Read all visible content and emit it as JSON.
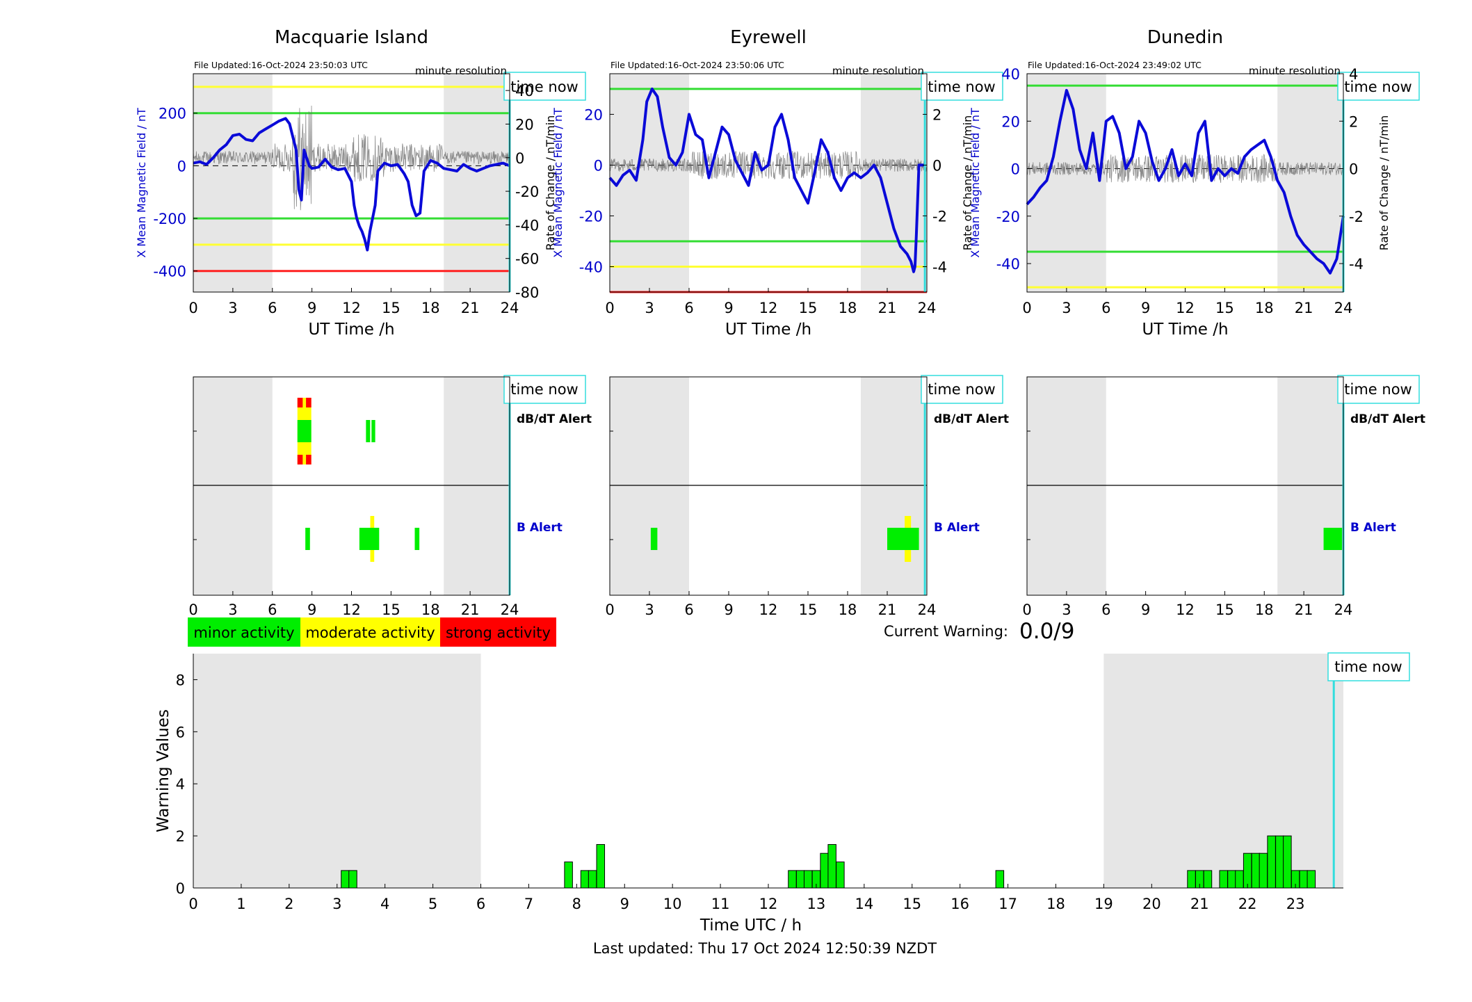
{
  "page": {
    "current_warning_label": "Current Warning:",
    "current_warning_value": "0.0/9",
    "last_updated": "Last updated: Thu 17 Oct 2024 12:50:39 NZDT",
    "time_now_label": "time now"
  },
  "stations": [
    {
      "name": "Macquarie Island",
      "file_updated": "File Updated:16-Oct-2024 23:50:03 UTC",
      "resolution": "minute resolution",
      "xlabel": "UT Time /h",
      "ylabel_left": "X Mean Magnetic Field / nT",
      "ylabel_right": "Rate of Change / nT/min",
      "xticks": [
        0,
        3,
        6,
        9,
        12,
        15,
        18,
        21,
        24
      ],
      "yticks_left": [
        -400,
        -200,
        0,
        200
      ],
      "yticks_right": [
        -80,
        -60,
        -40,
        -20,
        0,
        20,
        40
      ],
      "thresholds": [
        {
          "value": 300,
          "color": "#ffff33"
        },
        {
          "value": 200,
          "color": "#33dd33"
        },
        {
          "value": -200,
          "color": "#33dd33"
        },
        {
          "value": -300,
          "color": "#ffff33"
        },
        {
          "value": -400,
          "color": "#ff2020"
        }
      ],
      "alerts": {
        "dbdt_label": "dB/dT Alert",
        "b_label": "B Alert",
        "dbdt": [
          {
            "start": 7.9,
            "end": 8.95,
            "level": "strong"
          },
          {
            "start": 13.1,
            "end": 13.8,
            "level": "minor"
          }
        ],
        "b": [
          {
            "start": 8.5,
            "end": 8.85,
            "level": "minor"
          },
          {
            "start": 12.6,
            "end": 14.1,
            "level": "moderate"
          },
          {
            "start": 16.8,
            "end": 17.15,
            "level": "minor"
          }
        ]
      }
    },
    {
      "name": "Eyrewell",
      "file_updated": "File Updated:16-Oct-2024 23:50:06 UTC",
      "resolution": "minute resolution",
      "xlabel": "UT Time /h",
      "ylabel_left": "X Mean Magnetic Field / nT",
      "ylabel_right": "Rate of Change / nT/min",
      "xticks": [
        0,
        3,
        6,
        9,
        12,
        15,
        18,
        21,
        24
      ],
      "yticks_left": [
        -40,
        -20,
        0,
        20
      ],
      "yticks_right": [
        -4,
        -2,
        0,
        2
      ],
      "thresholds": [
        {
          "value": 30,
          "color": "#33dd33"
        },
        {
          "value": -30,
          "color": "#33dd33"
        },
        {
          "value": -40,
          "color": "#ffff33"
        },
        {
          "value": -50,
          "color": "#ff2020"
        }
      ],
      "alerts": {
        "dbdt_label": "dB/dT Alert",
        "b_label": "B Alert",
        "dbdt": [],
        "b": [
          {
            "start": 3.1,
            "end": 3.6,
            "level": "minor"
          },
          {
            "start": 21.0,
            "end": 23.4,
            "level": "moderate"
          }
        ]
      }
    },
    {
      "name": "Dunedin",
      "file_updated": "File Updated:16-Oct-2024 23:49:02 UTC",
      "resolution": "minute resolution",
      "xlabel": "UT Time /h",
      "ylabel_left": "X Mean Magnetic Field / nT",
      "ylabel_right": "Rate of Change / nT/min",
      "xticks": [
        0,
        3,
        6,
        9,
        12,
        15,
        18,
        21,
        24
      ],
      "yticks_left": [
        -40,
        -20,
        0,
        20,
        40
      ],
      "yticks_right": [
        -4,
        -2,
        0,
        2,
        4
      ],
      "thresholds": [
        {
          "value": 35,
          "color": "#33dd33"
        },
        {
          "value": -35,
          "color": "#33dd33"
        },
        {
          "value": -50,
          "color": "#ffff33"
        }
      ],
      "alerts": {
        "dbdt_label": "dB/dT Alert",
        "b_label": "B Alert",
        "dbdt": [],
        "b": [
          {
            "start": 22.5,
            "end": 23.9,
            "level": "minor"
          }
        ]
      }
    }
  ],
  "legend": [
    {
      "label": "minor activity",
      "color": "#00ee00"
    },
    {
      "label": "moderate activity",
      "color": "#ffff00"
    },
    {
      "label": "strong activity",
      "color": "#ff0000"
    }
  ],
  "colors": {
    "field_line": "#0a0ad8",
    "rate_line": "#666666",
    "night_shading": "#e6e6e6",
    "time_now": "#33dddd",
    "left_axis_text": "#0000cc"
  },
  "chart_data": [
    {
      "type": "line",
      "title": "Macquarie Island",
      "xlabel": "UT Time /h",
      "ylabel": "X Mean Magnetic Field / nT",
      "y2label": "Rate of Change / nT/min",
      "xlim": [
        0,
        24
      ],
      "ylim": [
        -480,
        350
      ],
      "y2lim": [
        -80,
        50
      ],
      "shading": [
        [
          0,
          6
        ],
        [
          19,
          24
        ]
      ],
      "time_now": 24,
      "series": [
        {
          "x": [
            0,
            0.5,
            1,
            1.5,
            2,
            2.5,
            3,
            3.5,
            4,
            4.5,
            5,
            5.5,
            6,
            6.5,
            7,
            7.3,
            7.6,
            7.8,
            8,
            8.2,
            8.4,
            8.6,
            8.8,
            9,
            9.5,
            10,
            10.5,
            11,
            11.5,
            12,
            12.2,
            12.4,
            12.6,
            12.8,
            13,
            13.2,
            13.4,
            13.6,
            13.8,
            14,
            14.5,
            15,
            15.5,
            16,
            16.3,
            16.6,
            16.9,
            17.2,
            17.5,
            18,
            18.5,
            19,
            19.5,
            20,
            20.5,
            21,
            21.5,
            22,
            22.5,
            23,
            23.5,
            24
          ],
          "y": [
            10,
            15,
            5,
            30,
            60,
            80,
            115,
            120,
            100,
            95,
            125,
            140,
            155,
            170,
            180,
            160,
            100,
            60,
            -90,
            -130,
            60,
            30,
            0,
            -10,
            -5,
            25,
            -5,
            -15,
            -10,
            -60,
            -150,
            -200,
            -230,
            -250,
            -280,
            -320,
            -250,
            -200,
            -150,
            -20,
            10,
            0,
            5,
            -30,
            -60,
            -150,
            -190,
            -180,
            -20,
            20,
            10,
            -10,
            -15,
            -20,
            5,
            -10,
            -20,
            -10,
            0,
            5,
            10,
            0
          ]
        }
      ],
      "thresholds": [
        300,
        200,
        -200,
        -300,
        -400
      ]
    },
    {
      "type": "line",
      "title": "Eyrewell",
      "xlabel": "UT Time /h",
      "ylabel": "X Mean Magnetic Field / nT",
      "y2label": "Rate of Change / nT/min",
      "xlim": [
        0,
        24
      ],
      "ylim": [
        -50,
        36
      ],
      "y2lim": [
        -5,
        3.6
      ],
      "shading": [
        [
          0,
          6
        ],
        [
          19,
          24
        ]
      ],
      "time_now": 23.85,
      "series": [
        {
          "x": [
            0,
            0.5,
            1,
            1.5,
            2,
            2.5,
            2.8,
            3.2,
            3.6,
            4,
            4.5,
            5,
            5.5,
            6,
            6.5,
            7,
            7.5,
            8,
            8.5,
            9,
            9.5,
            10,
            10.5,
            11,
            11.5,
            12,
            12.5,
            13,
            13.5,
            14,
            14.5,
            15,
            15.5,
            16,
            16.5,
            17,
            17.5,
            18,
            18.5,
            19,
            19.5,
            20,
            20.5,
            21,
            21.5,
            22,
            22.5,
            22.8,
            23,
            23.1,
            23.2,
            23.4,
            23.9
          ],
          "y": [
            -5,
            -8,
            -4,
            -2,
            -6,
            10,
            25,
            30,
            27,
            15,
            3,
            0,
            5,
            20,
            12,
            10,
            -5,
            5,
            15,
            12,
            2,
            -3,
            -8,
            5,
            -2,
            0,
            15,
            20,
            10,
            -5,
            -10,
            -15,
            -3,
            10,
            5,
            -5,
            -10,
            -5,
            -3,
            -5,
            -3,
            0,
            -5,
            -15,
            -25,
            -32,
            -35,
            -38,
            -42,
            -40,
            -28,
            0,
            0
          ]
        }
      ],
      "thresholds": [
        30,
        -30,
        -40,
        -50
      ]
    },
    {
      "type": "line",
      "title": "Dunedin",
      "xlabel": "UT Time /h",
      "ylabel": "X Mean Magnetic Field / nT",
      "y2label": "Rate of Change / nT/min",
      "xlim": [
        0,
        24
      ],
      "ylim": [
        -52,
        40
      ],
      "y2lim": [
        -5.2,
        4
      ],
      "shading": [
        [
          0,
          6
        ],
        [
          19,
          24
        ]
      ],
      "time_now": 24,
      "series": [
        {
          "x": [
            0,
            0.5,
            1,
            1.5,
            2,
            2.5,
            3,
            3.5,
            4,
            4.5,
            5,
            5.5,
            6,
            6.5,
            7,
            7.5,
            8,
            8.5,
            9,
            9.5,
            10,
            10.5,
            11,
            11.5,
            12,
            12.5,
            13,
            13.5,
            14,
            14.5,
            15,
            15.5,
            16,
            16.5,
            17,
            17.5,
            18,
            18.5,
            19,
            19.5,
            20,
            20.5,
            21,
            21.5,
            22,
            22.5,
            23,
            23.5,
            24
          ],
          "y": [
            -15,
            -12,
            -8,
            -5,
            5,
            20,
            33,
            25,
            8,
            0,
            15,
            -5,
            20,
            22,
            15,
            0,
            5,
            20,
            15,
            3,
            -5,
            0,
            8,
            -3,
            2,
            -3,
            15,
            20,
            -5,
            0,
            -3,
            0,
            -2,
            5,
            8,
            10,
            12,
            5,
            -5,
            -10,
            -20,
            -28,
            -32,
            -35,
            -38,
            -40,
            -44,
            -38,
            -20
          ]
        }
      ],
      "thresholds": [
        35,
        -35,
        -50
      ]
    },
    {
      "type": "bar",
      "xlabel": "Time UTC / h",
      "ylabel": "Warning Values",
      "xlim": [
        0,
        24
      ],
      "ylim": [
        0,
        9
      ],
      "shading": [
        [
          0,
          6
        ],
        [
          19,
          24
        ]
      ],
      "time_now": 23.8,
      "bar_width_h": 0.1667,
      "x": [
        3.17,
        3.33,
        7.83,
        8.17,
        8.33,
        8.5,
        12.5,
        12.67,
        12.83,
        13.0,
        13.17,
        13.33,
        13.5,
        16.83,
        20.83,
        21.0,
        21.17,
        21.5,
        21.67,
        21.83,
        22.0,
        22.17,
        22.33,
        22.5,
        22.67,
        22.83,
        23.0,
        23.17,
        23.33
      ],
      "values": [
        0.67,
        0.67,
        1.0,
        0.67,
        0.67,
        1.67,
        0.67,
        0.67,
        0.67,
        0.67,
        1.33,
        1.67,
        1.0,
        0.67,
        0.67,
        0.67,
        0.67,
        0.67,
        0.67,
        0.67,
        1.33,
        1.33,
        1.33,
        2.0,
        2.0,
        2.0,
        0.67,
        0.67,
        0.67
      ]
    }
  ]
}
